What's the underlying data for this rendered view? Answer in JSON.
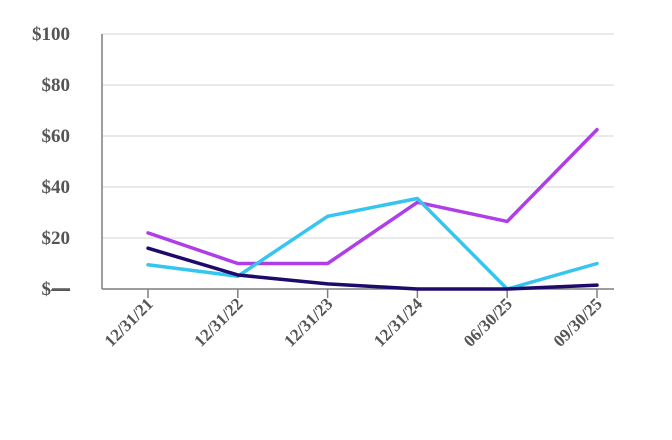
{
  "chart_data": {
    "type": "line",
    "title": "",
    "xlabel": "",
    "ylabel": "",
    "categories": [
      "12/31/21",
      "12/31/22",
      "12/31/23",
      "12/31/24",
      "06/30/25",
      "09/30/25"
    ],
    "ylim": [
      0,
      100
    ],
    "yticks": [
      0,
      20,
      40,
      60,
      80,
      100
    ],
    "ytick_labels": [
      "$—",
      "$20",
      "$40",
      "$60",
      "$80",
      "$100"
    ],
    "grid": true,
    "legend": "none",
    "series": [
      {
        "color": "#b03ee8",
        "values": [
          22,
          10,
          10,
          34,
          26.5,
          62.5
        ]
      },
      {
        "color": "#36c5f0",
        "values": [
          9.5,
          5,
          28.5,
          35.5,
          0,
          10
        ]
      },
      {
        "color": "#1e0a6b",
        "values": [
          16,
          5.5,
          2,
          0,
          0,
          1.5
        ]
      }
    ]
  }
}
